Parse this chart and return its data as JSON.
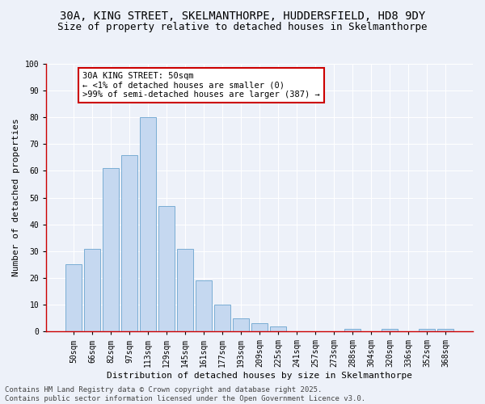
{
  "title_line1": "30A, KING STREET, SKELMANTHORPE, HUDDERSFIELD, HD8 9DY",
  "title_line2": "Size of property relative to detached houses in Skelmanthorpe",
  "categories": [
    "50sqm",
    "66sqm",
    "82sqm",
    "97sqm",
    "113sqm",
    "129sqm",
    "145sqm",
    "161sqm",
    "177sqm",
    "193sqm",
    "209sqm",
    "225sqm",
    "241sqm",
    "257sqm",
    "273sqm",
    "288sqm",
    "304sqm",
    "320sqm",
    "336sqm",
    "352sqm",
    "368sqm"
  ],
  "values": [
    25,
    31,
    61,
    66,
    80,
    47,
    31,
    19,
    10,
    5,
    3,
    2,
    0,
    0,
    0,
    1,
    0,
    1,
    0,
    1,
    1
  ],
  "bar_color": "#c5d8f0",
  "bar_edge_color": "#7aadd4",
  "ylabel": "Number of detached properties",
  "xlabel": "Distribution of detached houses by size in Skelmanthorpe",
  "ylim": [
    0,
    100
  ],
  "yticks": [
    0,
    10,
    20,
    30,
    40,
    50,
    60,
    70,
    80,
    90,
    100
  ],
  "background_color": "#edf1f9",
  "grid_color": "#ffffff",
  "annotation_text": "30A KING STREET: 50sqm\n← <1% of detached houses are smaller (0)\n>99% of semi-detached houses are larger (387) →",
  "annotation_box_color": "#ffffff",
  "annotation_edge_color": "#cc0000",
  "footer_text": "Contains HM Land Registry data © Crown copyright and database right 2025.\nContains public sector information licensed under the Open Government Licence v3.0.",
  "title_fontsize": 10,
  "subtitle_fontsize": 9,
  "axis_label_fontsize": 8,
  "tick_fontsize": 7,
  "annotation_fontsize": 7.5,
  "footer_fontsize": 6.5,
  "spine_color": "#cc0000"
}
